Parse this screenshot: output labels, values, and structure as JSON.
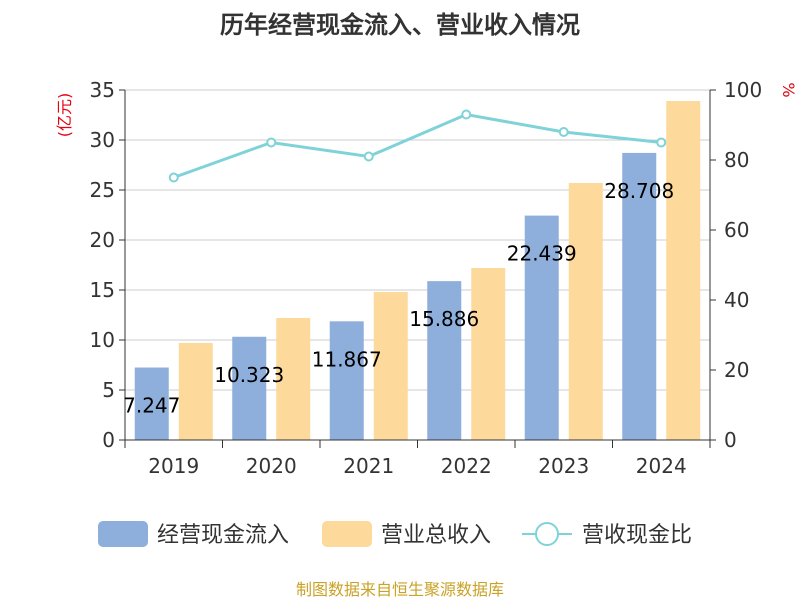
{
  "chart_data": {
    "type": "bar",
    "title": "历年经营现金流入、营业收入情况",
    "categories": [
      "2019",
      "2020",
      "2021",
      "2022",
      "2023",
      "2024"
    ],
    "series": [
      {
        "name": "经营现金流入",
        "type": "bar",
        "axis": "left",
        "color": "#8eaedb",
        "values": [
          7.247,
          10.323,
          11.867,
          15.886,
          22.439,
          28.708
        ],
        "labels": [
          "7.247",
          "10.323",
          "11.867",
          "15.886",
          "22.439",
          "28.708"
        ]
      },
      {
        "name": "营业总收入",
        "type": "bar",
        "axis": "left",
        "color": "#fdd99b",
        "values": [
          9.7,
          12.2,
          14.8,
          17.2,
          25.7,
          33.9
        ]
      },
      {
        "name": "营收现金比",
        "type": "line",
        "axis": "right",
        "color": "#7fd3d8",
        "values": [
          75,
          85,
          81,
          93,
          88,
          85
        ]
      }
    ],
    "y_left": {
      "unit": "(亿元)",
      "min": 0,
      "max": 35,
      "ticks": [
        0,
        5,
        10,
        15,
        20,
        25,
        30,
        35
      ]
    },
    "y_right": {
      "unit": "%",
      "min": 0,
      "max": 100,
      "ticks": [
        0,
        20,
        40,
        60,
        80,
        100
      ]
    },
    "grid": true,
    "legend_position": "bottom",
    "source": "制图数据来自恒生聚源数据库"
  }
}
